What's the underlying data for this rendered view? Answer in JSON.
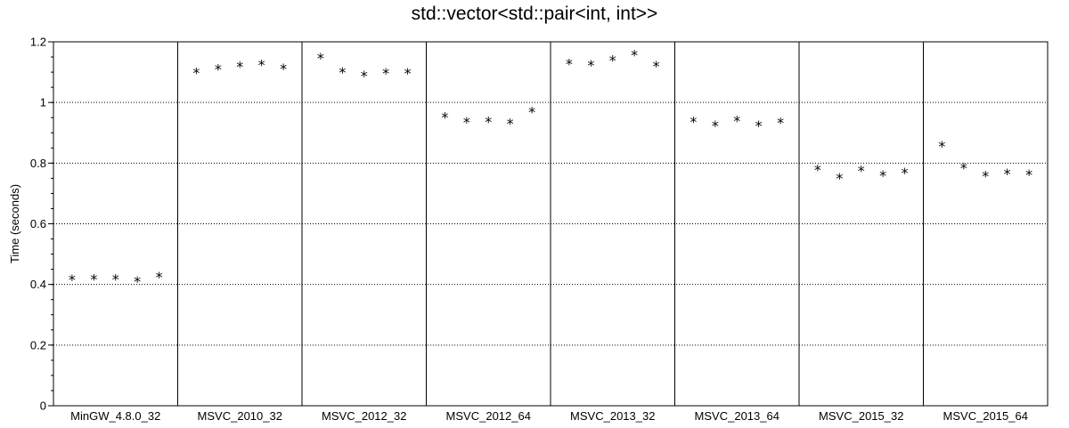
{
  "chart_data": {
    "type": "scatter",
    "title": "std::vector<std::pair<int, int>>",
    "ylabel": "Time (seconds)",
    "xlabel": "",
    "ylim": [
      0,
      1.2
    ],
    "y_ticks": [
      "0",
      "0.2",
      "0.4",
      "0.6",
      "0.8",
      "1",
      "1.2"
    ],
    "grid": true,
    "marker": "*",
    "categories": [
      "MinGW_4.8.0_32",
      "MSVC_2010_32",
      "MSVC_2012_32",
      "MSVC_2012_64",
      "MSVC_2013_32",
      "MSVC_2013_64",
      "MSVC_2015_32",
      "MSVC_2015_64"
    ],
    "series": [
      {
        "category": "MinGW_4.8.0_32",
        "values": [
          0.423,
          0.424,
          0.424,
          0.416,
          0.431
        ]
      },
      {
        "category": "MSVC_2010_32",
        "values": [
          1.104,
          1.117,
          1.125,
          1.131,
          1.118
        ]
      },
      {
        "category": "MSVC_2012_32",
        "values": [
          1.153,
          1.106,
          1.095,
          1.103,
          1.103
        ]
      },
      {
        "category": "MSVC_2012_64",
        "values": [
          0.958,
          0.942,
          0.943,
          0.937,
          0.976
        ]
      },
      {
        "category": "MSVC_2013_32",
        "values": [
          1.134,
          1.13,
          1.146,
          1.164,
          1.127
        ]
      },
      {
        "category": "MSVC_2013_64",
        "values": [
          0.943,
          0.93,
          0.946,
          0.93,
          0.941
        ]
      },
      {
        "category": "MSVC_2015_32",
        "values": [
          0.785,
          0.757,
          0.782,
          0.766,
          0.775
        ]
      },
      {
        "category": "MSVC_2015_64",
        "values": [
          0.862,
          0.791,
          0.764,
          0.772,
          0.769
        ]
      }
    ]
  }
}
